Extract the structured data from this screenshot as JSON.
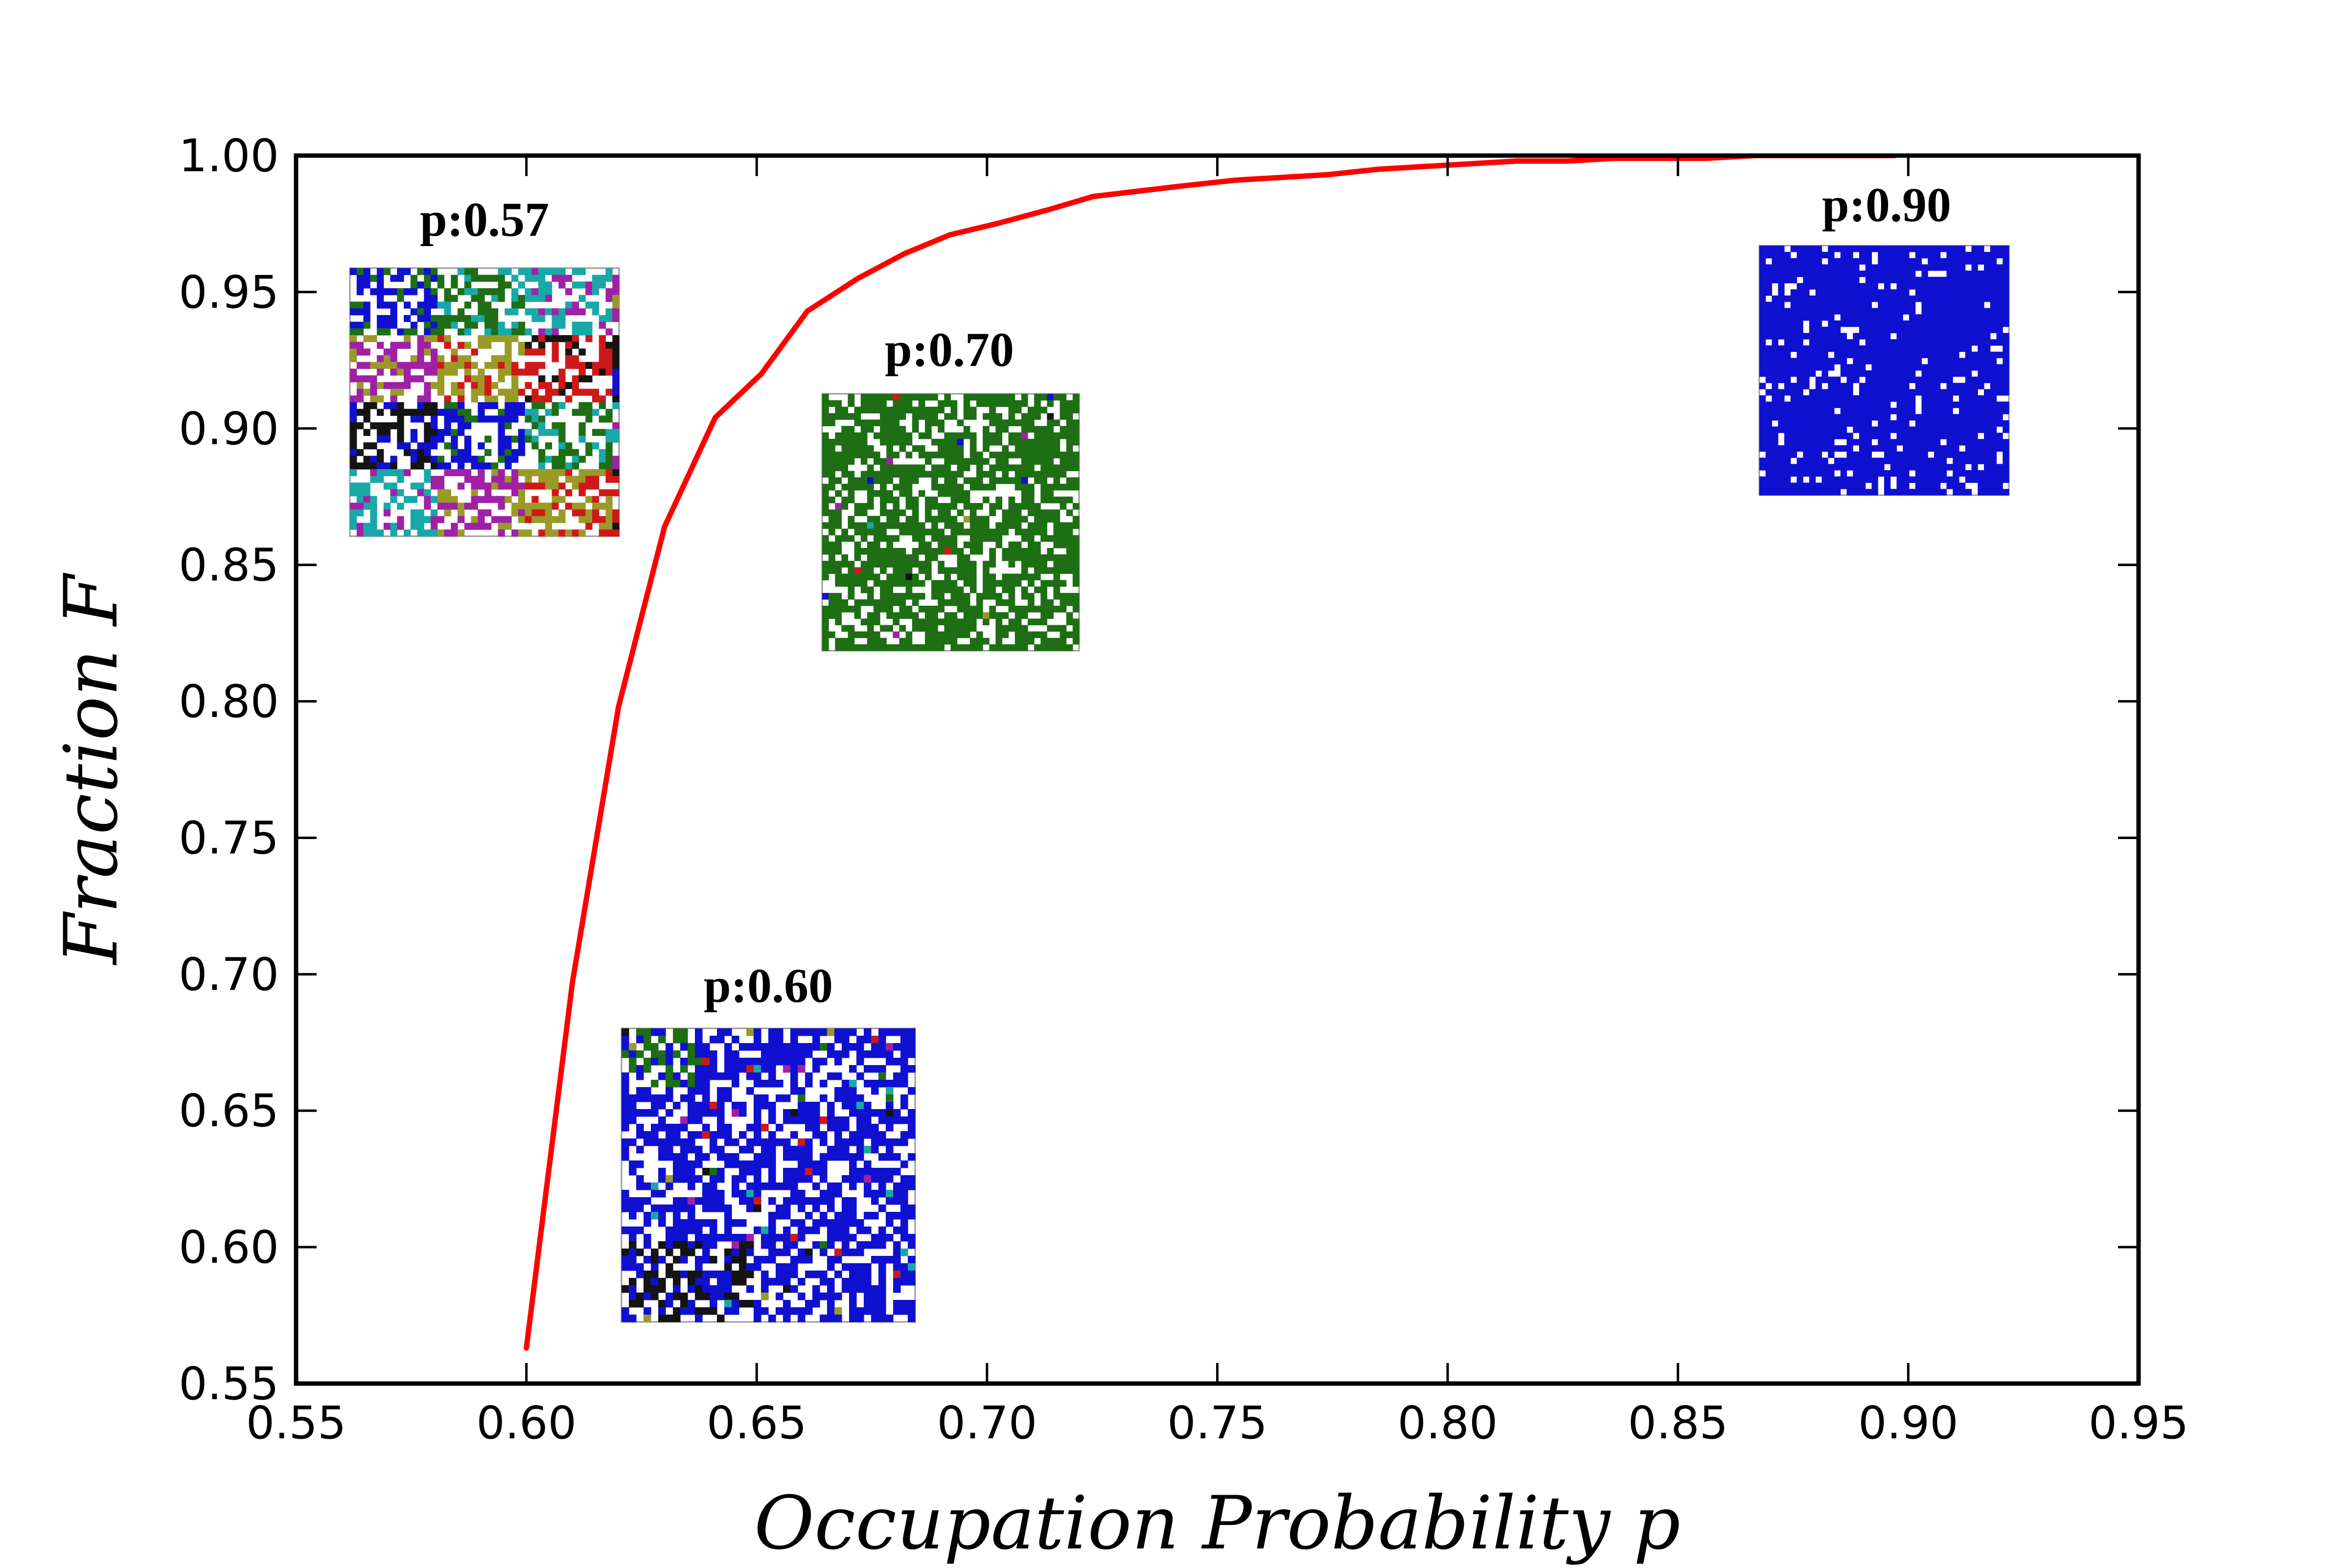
{
  "chart_data": {
    "type": "line",
    "title": "",
    "xlabel": "Occupation Probability p",
    "ylabel": "Fraction F",
    "xlim": [
      0.55,
      0.95
    ],
    "ylim": [
      0.55,
      1.0
    ],
    "xticks": [
      "0.55",
      "0.60",
      "0.65",
      "0.70",
      "0.75",
      "0.80",
      "0.85",
      "0.90",
      "0.95"
    ],
    "yticks": [
      "0.55",
      "0.60",
      "0.65",
      "0.70",
      "0.75",
      "0.80",
      "0.85",
      "0.90",
      "0.95",
      "1.00"
    ],
    "grid": false,
    "legend": "none",
    "series": [
      {
        "color": "#ff0000",
        "x": [
          0.6,
          0.61,
          0.62,
          0.63,
          0.641,
          0.651,
          0.661,
          0.672,
          0.682,
          0.692,
          0.702,
          0.713,
          0.723,
          0.733,
          0.743,
          0.754,
          0.764,
          0.774,
          0.785,
          0.795,
          0.805,
          0.815,
          0.826,
          0.836,
          0.846,
          0.856,
          0.867,
          0.877,
          0.887,
          0.897
        ],
        "y": [
          0.563,
          0.697,
          0.798,
          0.864,
          0.904,
          0.92,
          0.943,
          0.955,
          0.964,
          0.971,
          0.975,
          0.98,
          0.985,
          0.987,
          0.989,
          0.991,
          0.992,
          0.993,
          0.995,
          0.996,
          0.997,
          0.998,
          0.998,
          0.999,
          0.999,
          0.999,
          1.0,
          1.0,
          1.0,
          1.0
        ]
      }
    ],
    "annotations": [
      {
        "label": "p:0.57",
        "description": "lattice snapshot, many mixed-color clusters"
      },
      {
        "label": "p:0.60",
        "description": "lattice snapshot, mostly blue with small clusters"
      },
      {
        "label": "p:0.70",
        "description": "lattice snapshot, dominant green cluster"
      },
      {
        "label": "p:0.90",
        "description": "lattice snapshot, dominant blue cluster"
      }
    ]
  },
  "colors": {
    "curve": "#ff0000",
    "axis": "#000000",
    "cluster_blue": "#1010d0",
    "cluster_green": "#1e6e14",
    "cluster_cyan": "#19a8a8",
    "cluster_magenta": "#a020a8",
    "cluster_olive": "#9a9a28",
    "cluster_red": "#d01818",
    "cluster_black": "#141414",
    "empty_site": "#ffffff"
  }
}
